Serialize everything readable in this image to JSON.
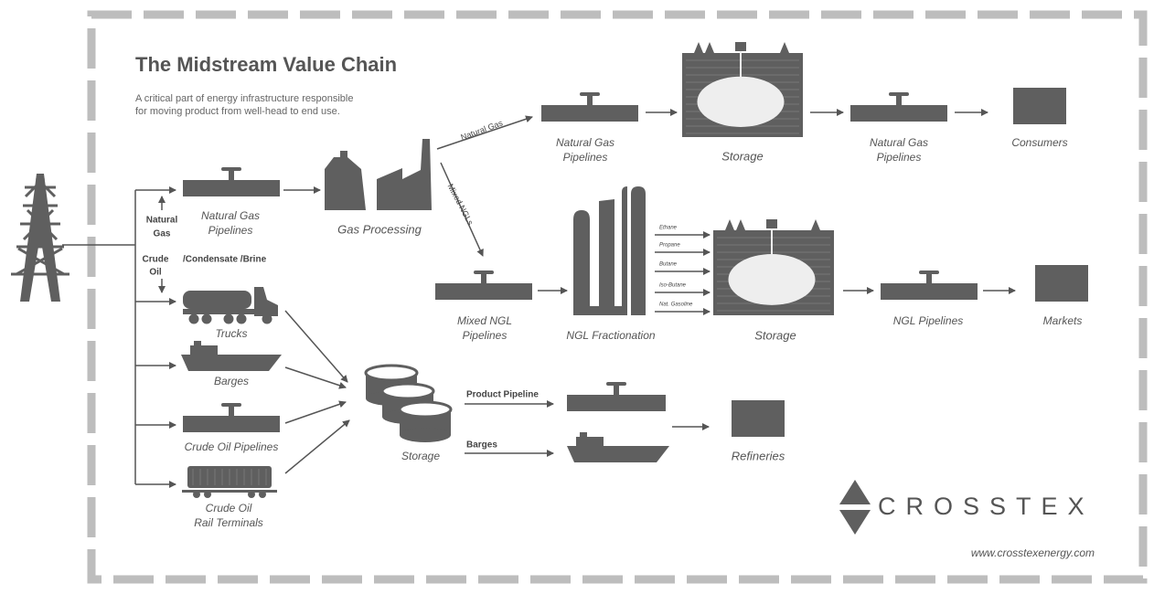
{
  "items": [
    {
      "lines": [
        "The Midstream Value Chain"
      ]
    },
    {
      "lines": [
        "A critical part of energy infrastructure responsible",
        "for moving product from well-head to end use."
      ]
    },
    {
      "lines": [
        "Natural Gas"
      ]
    },
    {
      "lines": [
        "Mixed NGLs"
      ]
    },
    {
      "lines": [
        "Natural Gas",
        "Pipelines"
      ]
    },
    {
      "lines": [
        "Gas Processing"
      ]
    },
    {
      "lines": [
        "Natural Gas",
        "Pipelines"
      ]
    },
    {
      "lines": [
        "Storage"
      ]
    },
    {
      "lines": [
        "Natural Gas",
        "Pipelines"
      ]
    },
    {
      "lines": [
        "Consumers"
      ]
    },
    {
      "lines": [
        "Natural",
        "Gas"
      ]
    },
    {
      "lines": [
        "Crude",
        "Oil"
      ]
    },
    {
      "lines": [
        "/Condensate /Brine"
      ]
    },
    {
      "lines": [
        "Trucks"
      ]
    },
    {
      "lines": [
        "Barges"
      ]
    },
    {
      "lines": [
        "Crude Oil Pipelines"
      ]
    },
    {
      "lines": [
        "Crude Oil",
        "Rail Terminals"
      ]
    },
    {
      "lines": [
        "Mixed NGL",
        "Pipelines"
      ]
    },
    {
      "lines": [
        "NGL Fractionation"
      ]
    },
    {
      "lines": [
        "Ethane"
      ]
    },
    {
      "lines": [
        "Propane"
      ]
    },
    {
      "lines": [
        "Butane"
      ]
    },
    {
      "lines": [
        "Iso-Butane"
      ]
    },
    {
      "lines": [
        "Nat. Gasoline"
      ]
    },
    {
      "lines": [
        "Storage"
      ]
    },
    {
      "lines": [
        "NGL Pipelines"
      ]
    },
    {
      "lines": [
        "Markets"
      ]
    },
    {
      "lines": [
        "Storage"
      ]
    },
    {
      "lines": [
        "Product Pipeline"
      ]
    },
    {
      "lines": [
        "Barges"
      ]
    },
    {
      "lines": [
        "Refineries"
      ]
    },
    {
      "lines": [
        "CROSSTEX"
      ]
    },
    {
      "lines": [
        "www.crosstexenergy.com"
      ]
    }
  ]
}
